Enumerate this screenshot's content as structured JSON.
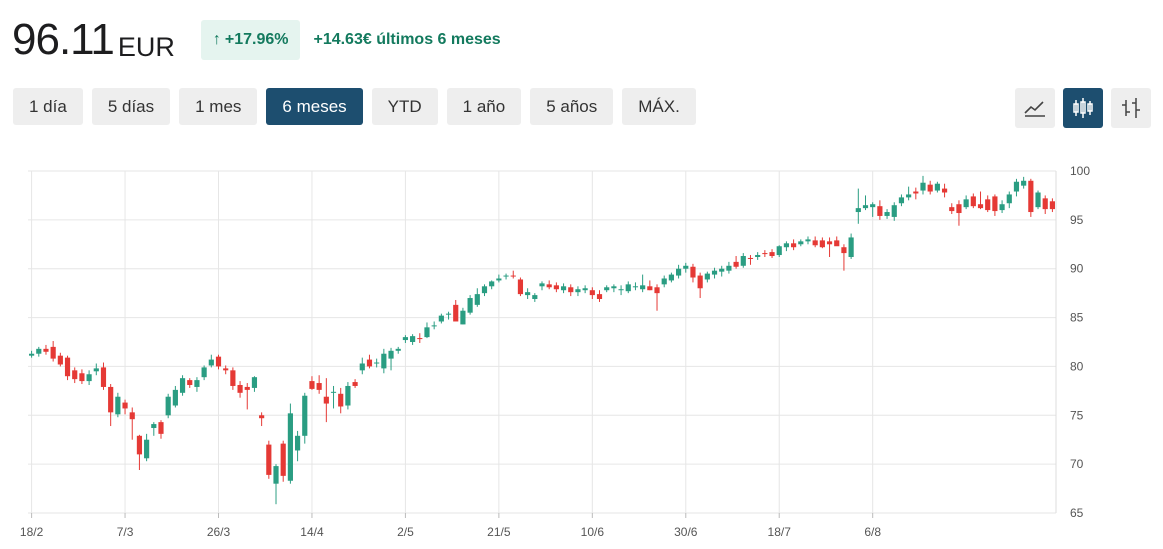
{
  "quote": {
    "price": "96.11",
    "currency": "EUR",
    "change_pct": "+17.96%",
    "change_abs": "+14.63€ últimos 6 meses"
  },
  "ranges": [
    "1 día",
    "5 días",
    "1 mes",
    "6 meses",
    "YTD",
    "1 año",
    "5 años",
    "MÁX."
  ],
  "active_range": "6 meses",
  "chart_types": [
    {
      "name": "line-chart-icon",
      "active": false
    },
    {
      "name": "candlestick-chart-icon",
      "active": true
    },
    {
      "name": "ohlc-chart-icon",
      "active": false
    }
  ],
  "colors": {
    "up": "#2a9d82",
    "down": "#e53935",
    "accent": "#1d4e6f",
    "badge_bg": "#e5f4ef",
    "positive_text": "#137a5e"
  },
  "chart_data": {
    "type": "candlestick",
    "title": "",
    "xlabel": "",
    "ylabel": "",
    "ylim": [
      65,
      100
    ],
    "yticks": [
      65,
      70,
      75,
      80,
      85,
      90,
      95,
      100
    ],
    "y_axis_position": "right",
    "grid": true,
    "x_tick_labels": [
      "18/2",
      "7/3",
      "26/3",
      "14/4",
      "2/5",
      "21/5",
      "10/6",
      "30/6",
      "18/7",
      "6/8"
    ],
    "x_tick_index": [
      0,
      13,
      26,
      39,
      52,
      65,
      78,
      91,
      104,
      117
    ],
    "candles": [
      [
        81.1,
        81.6,
        80.9,
        81.3
      ],
      [
        81.3,
        82.0,
        81.0,
        81.8
      ],
      [
        81.8,
        82.2,
        81.2,
        81.5
      ],
      [
        82.0,
        82.6,
        80.5,
        80.8
      ],
      [
        81.1,
        81.4,
        80.0,
        80.2
      ],
      [
        80.9,
        81.1,
        78.6,
        79.0
      ],
      [
        79.6,
        79.9,
        78.3,
        78.7
      ],
      [
        79.3,
        79.7,
        78.2,
        78.5
      ],
      [
        78.5,
        79.6,
        78.1,
        79.2
      ],
      [
        79.5,
        80.3,
        79.1,
        79.8
      ],
      [
        79.9,
        80.4,
        77.6,
        77.9
      ],
      [
        77.9,
        78.2,
        73.9,
        75.3
      ],
      [
        75.1,
        77.3,
        74.8,
        76.9
      ],
      [
        76.3,
        76.6,
        75.1,
        75.7
      ],
      [
        75.3,
        75.8,
        72.5,
        74.6
      ],
      [
        72.9,
        73.0,
        69.4,
        71.0
      ],
      [
        70.6,
        73.1,
        70.3,
        72.5
      ],
      [
        73.7,
        74.3,
        72.9,
        74.1
      ],
      [
        74.3,
        74.5,
        72.6,
        73.1
      ],
      [
        75.0,
        77.2,
        74.7,
        76.9
      ],
      [
        76.0,
        78.0,
        75.8,
        77.6
      ],
      [
        77.3,
        79.1,
        77.0,
        78.8
      ],
      [
        78.6,
        78.8,
        77.8,
        78.1
      ],
      [
        77.9,
        78.9,
        77.4,
        78.6
      ],
      [
        78.9,
        80.1,
        78.6,
        79.9
      ],
      [
        80.1,
        81.2,
        79.9,
        80.7
      ],
      [
        81.0,
        81.2,
        79.7,
        80.0
      ],
      [
        79.8,
        80.1,
        79.2,
        79.6
      ],
      [
        79.6,
        79.9,
        77.6,
        78.0
      ],
      [
        78.1,
        78.5,
        76.8,
        77.3
      ],
      [
        77.9,
        78.3,
        75.6,
        77.6
      ],
      [
        77.8,
        79.0,
        77.4,
        78.9
      ],
      [
        75.0,
        75.3,
        73.9,
        74.7
      ],
      [
        72.0,
        72.4,
        68.5,
        68.9
      ],
      [
        68.0,
        70.0,
        65.9,
        69.8
      ],
      [
        72.1,
        72.4,
        68.2,
        68.8
      ],
      [
        68.3,
        76.2,
        68.0,
        75.2
      ],
      [
        71.4,
        73.4,
        70.3,
        72.9
      ],
      [
        72.9,
        77.3,
        72.1,
        77.0
      ],
      [
        78.5,
        79.0,
        77.6,
        77.7
      ],
      [
        78.3,
        79.1,
        77.2,
        77.6
      ],
      [
        76.9,
        78.8,
        74.3,
        76.2
      ],
      [
        77.3,
        78.0,
        75.7,
        77.4
      ],
      [
        77.2,
        77.8,
        75.2,
        75.9
      ],
      [
        76.0,
        78.4,
        75.6,
        78.0
      ],
      [
        78.4,
        78.7,
        77.8,
        78.0
      ],
      [
        79.6,
        80.9,
        79.2,
        80.3
      ],
      [
        80.7,
        81.2,
        79.8,
        80.0
      ],
      [
        80.3,
        80.8,
        79.9,
        80.4
      ],
      [
        79.8,
        81.8,
        79.3,
        81.3
      ],
      [
        80.8,
        81.9,
        79.6,
        81.6
      ],
      [
        81.6,
        82.0,
        81.3,
        81.8
      ],
      [
        82.7,
        83.2,
        82.4,
        83.0
      ],
      [
        82.5,
        83.3,
        82.2,
        83.1
      ],
      [
        82.9,
        83.4,
        82.4,
        82.8
      ],
      [
        83.0,
        84.5,
        82.9,
        84.0
      ],
      [
        84.1,
        84.6,
        83.8,
        84.2
      ],
      [
        84.6,
        85.4,
        84.4,
        85.2
      ],
      [
        85.3,
        85.6,
        84.8,
        85.4
      ],
      [
        86.3,
        86.8,
        84.9,
        84.6
      ],
      [
        84.3,
        86.0,
        84.3,
        85.7
      ],
      [
        85.5,
        87.3,
        85.3,
        87.0
      ],
      [
        86.3,
        88.0,
        86.1,
        87.4
      ],
      [
        87.5,
        88.4,
        87.2,
        88.2
      ],
      [
        88.2,
        88.8,
        87.9,
        88.7
      ],
      [
        88.8,
        89.4,
        88.6,
        89.0
      ],
      [
        89.2,
        89.5,
        88.9,
        89.3
      ],
      [
        89.3,
        89.8,
        89.0,
        89.2
      ],
      [
        88.9,
        89.1,
        87.2,
        87.4
      ],
      [
        87.3,
        88.0,
        86.9,
        87.6
      ],
      [
        86.9,
        87.5,
        86.6,
        87.3
      ],
      [
        88.2,
        88.7,
        87.8,
        88.5
      ],
      [
        88.4,
        88.8,
        87.9,
        88.1
      ],
      [
        88.3,
        88.6,
        87.6,
        87.9
      ],
      [
        87.8,
        88.5,
        87.5,
        88.2
      ],
      [
        88.1,
        88.4,
        87.2,
        87.6
      ],
      [
        87.6,
        88.2,
        87.2,
        87.9
      ],
      [
        87.8,
        88.3,
        87.5,
        88.0
      ],
      [
        87.8,
        88.1,
        86.9,
        87.3
      ],
      [
        87.4,
        87.8,
        86.6,
        86.9
      ],
      [
        87.8,
        88.3,
        87.6,
        88.1
      ],
      [
        88.0,
        88.4,
        87.6,
        88.2
      ],
      [
        87.8,
        88.3,
        87.3,
        87.9
      ],
      [
        87.7,
        88.7,
        87.5,
        88.4
      ],
      [
        88.1,
        88.6,
        87.8,
        88.2
      ],
      [
        87.9,
        89.4,
        87.6,
        88.3
      ],
      [
        88.2,
        88.8,
        87.8,
        87.8
      ],
      [
        88.1,
        88.4,
        85.7,
        87.5
      ],
      [
        88.4,
        89.3,
        88.1,
        89.0
      ],
      [
        88.8,
        89.6,
        88.6,
        89.4
      ],
      [
        89.3,
        90.4,
        89.0,
        90.0
      ],
      [
        90.0,
        90.6,
        89.6,
        90.3
      ],
      [
        90.2,
        90.5,
        88.6,
        89.1
      ],
      [
        89.3,
        89.6,
        87.0,
        88.0
      ],
      [
        88.9,
        89.7,
        88.6,
        89.5
      ],
      [
        89.4,
        90.1,
        89.0,
        89.8
      ],
      [
        89.7,
        90.3,
        89.2,
        90.0
      ],
      [
        89.8,
        90.7,
        89.5,
        90.3
      ],
      [
        90.7,
        91.3,
        90.0,
        90.2
      ],
      [
        90.3,
        91.6,
        90.1,
        91.3
      ],
      [
        91.1,
        91.4,
        90.4,
        91.0
      ],
      [
        91.2,
        91.7,
        90.9,
        91.4
      ],
      [
        91.6,
        91.9,
        91.2,
        91.5
      ],
      [
        91.7,
        92.0,
        91.1,
        91.3
      ],
      [
        91.4,
        92.4,
        91.2,
        92.3
      ],
      [
        92.2,
        92.8,
        91.8,
        92.6
      ],
      [
        92.6,
        93.0,
        91.9,
        92.2
      ],
      [
        92.5,
        93.0,
        92.3,
        92.8
      ],
      [
        92.8,
        93.3,
        92.5,
        93.0
      ],
      [
        92.9,
        93.3,
        92.2,
        92.4
      ],
      [
        92.9,
        93.2,
        92.1,
        92.2
      ],
      [
        92.8,
        93.2,
        91.2,
        92.5
      ],
      [
        92.9,
        93.3,
        92.5,
        92.3
      ],
      [
        92.2,
        92.5,
        89.8,
        91.6
      ],
      [
        91.2,
        93.6,
        91.0,
        93.2
      ],
      [
        95.8,
        98.2,
        94.6,
        96.2
      ],
      [
        96.2,
        97.5,
        96.0,
        96.5
      ],
      [
        96.3,
        96.8,
        95.3,
        96.6
      ],
      [
        96.4,
        97.0,
        95.0,
        95.4
      ],
      [
        95.4,
        96.1,
        95.1,
        95.8
      ],
      [
        95.3,
        96.8,
        94.9,
        96.5
      ],
      [
        96.7,
        97.6,
        96.4,
        97.3
      ],
      [
        97.3,
        98.4,
        97.0,
        97.6
      ],
      [
        97.9,
        98.3,
        97.1,
        97.7
      ],
      [
        98.0,
        99.5,
        97.6,
        98.8
      ],
      [
        98.6,
        99.0,
        97.6,
        97.9
      ],
      [
        98.0,
        98.9,
        97.8,
        98.7
      ],
      [
        98.2,
        98.7,
        97.3,
        97.8
      ],
      [
        96.3,
        96.7,
        95.6,
        95.9
      ],
      [
        96.6,
        97.0,
        94.4,
        95.7
      ],
      [
        96.3,
        97.5,
        96.1,
        97.1
      ],
      [
        97.4,
        97.7,
        96.2,
        96.4
      ],
      [
        96.6,
        97.9,
        96.1,
        96.2
      ],
      [
        97.1,
        97.5,
        95.8,
        96.0
      ],
      [
        97.4,
        97.6,
        95.4,
        95.9
      ],
      [
        96.0,
        97.0,
        95.7,
        96.6
      ],
      [
        96.7,
        97.9,
        96.2,
        97.6
      ],
      [
        97.9,
        99.2,
        97.4,
        98.9
      ],
      [
        98.5,
        99.4,
        98.2,
        99.0
      ],
      [
        99.0,
        99.2,
        95.3,
        95.8
      ],
      [
        96.3,
        98.0,
        96.1,
        97.8
      ],
      [
        97.2,
        97.5,
        95.6,
        96.1
      ],
      [
        96.9,
        97.2,
        95.8,
        96.1
      ]
    ]
  }
}
